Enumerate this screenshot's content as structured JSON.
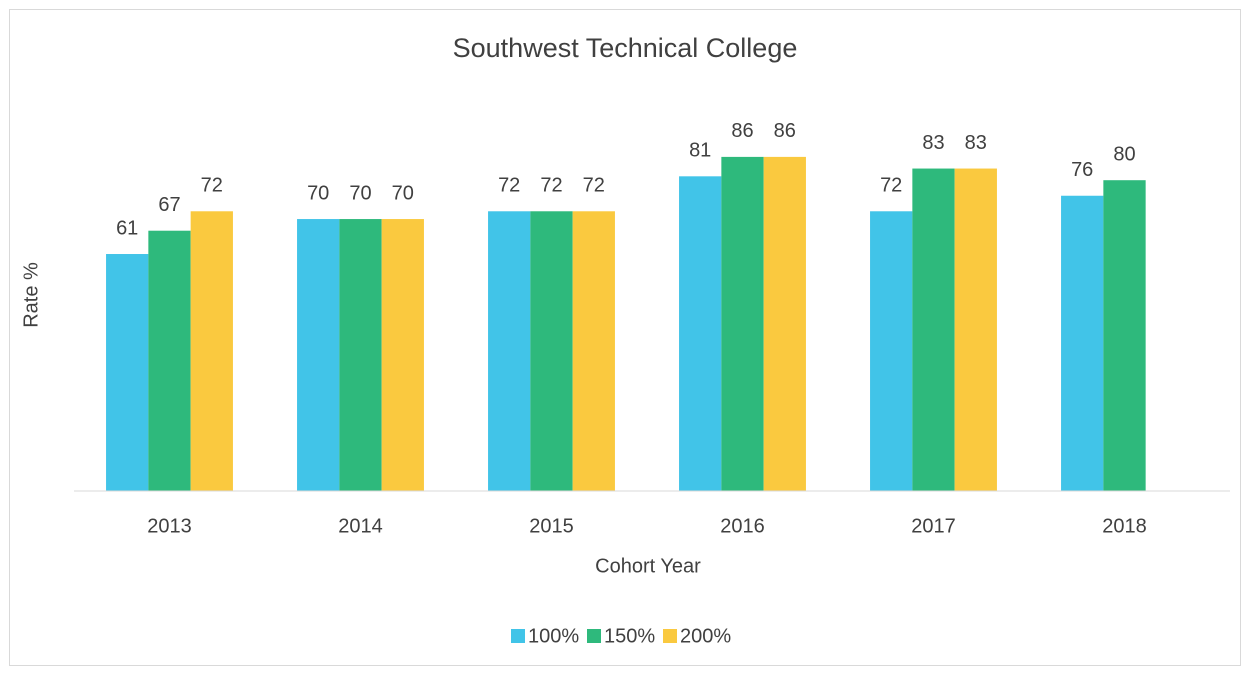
{
  "chart_data": {
    "type": "bar",
    "title": "Southwest Technical College",
    "x_label": "Cohort Year",
    "y_label": "Rate %",
    "categories": [
      "2013",
      "2014",
      "2015",
      "2016",
      "2017",
      "2018"
    ],
    "series": [
      {
        "name": "100%",
        "color": "#41c4e8",
        "values": [
          61,
          70,
          72,
          81,
          72,
          76
        ]
      },
      {
        "name": "150%",
        "color": "#2eb97c",
        "values": [
          67,
          70,
          72,
          86,
          83,
          80
        ]
      },
      {
        "name": "200%",
        "color": "#fac93f",
        "values": [
          72,
          70,
          72,
          86,
          83,
          null
        ]
      }
    ],
    "ylim": [
      0,
      100
    ],
    "grid": false,
    "legend": "bottom"
  }
}
